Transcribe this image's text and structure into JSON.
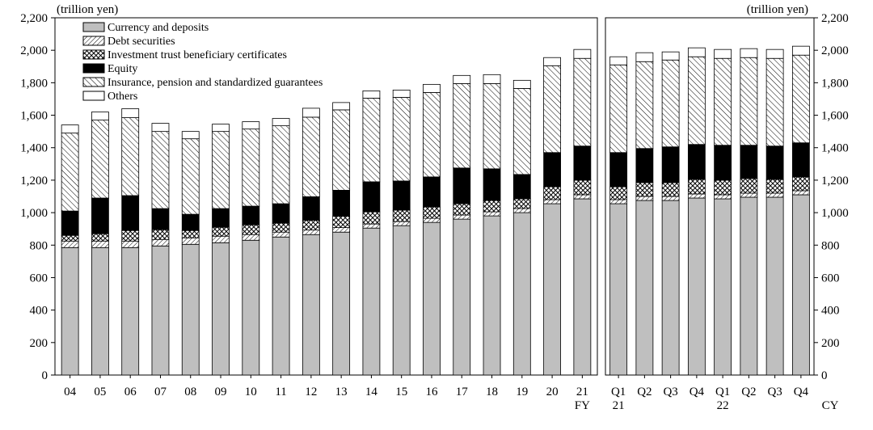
{
  "chart_data": {
    "type": "bar",
    "stacked": true,
    "unit_left": "(trillion yen)",
    "unit_right": "(trillion yen)",
    "ylim": [
      0,
      2200
    ],
    "yticks": [
      0,
      200,
      400,
      600,
      800,
      1000,
      1200,
      1400,
      1600,
      1800,
      2000,
      2200
    ],
    "ytick_labels": [
      "0",
      "200",
      "400",
      "600",
      "800",
      "1,000",
      "1,200",
      "1,400",
      "1,600",
      "1,800",
      "2,000",
      "2,200"
    ],
    "grid": false,
    "legend_position": "top-left",
    "series_order": [
      "Currency and deposits",
      "Debt securities",
      "Investment trust beneficiary certificates",
      "Equity",
      "Insurance, pension and standardized guarantees",
      "Others"
    ],
    "series_patterns": [
      "solid-gray",
      "hatch-fine",
      "crosshatch-dark",
      "solid-black",
      "hatch-diagonal",
      "solid-white"
    ],
    "colors": {
      "currency": "#bfbfbf",
      "equity": "#000000",
      "others": "#ffffff",
      "outline": "#000000"
    },
    "panels": [
      {
        "axis_label": "FY",
        "categories": [
          "04",
          "05",
          "06",
          "07",
          "08",
          "09",
          "10",
          "11",
          "12",
          "13",
          "14",
          "15",
          "16",
          "17",
          "18",
          "19",
          "20",
          "21"
        ],
        "category_sublabels": [
          "",
          "",
          "",
          "",
          "",
          "",
          "",
          "",
          "",
          "",
          "",
          "",
          "",
          "",
          "",
          "",
          "",
          ""
        ],
        "series": [
          {
            "name": "Currency and deposits",
            "values": [
              785,
              785,
              785,
              795,
              805,
              815,
              830,
              850,
              865,
              880,
              905,
              920,
              940,
              960,
              980,
              1000,
              1055,
              1085
            ]
          },
          {
            "name": "Debt securities",
            "values": [
              40,
              40,
              40,
              40,
              40,
              40,
              35,
              30,
              28,
              28,
              25,
              25,
              25,
              25,
              25,
              25,
              25,
              25
            ]
          },
          {
            "name": "Investment trust beneficiary certificates",
            "values": [
              35,
              45,
              65,
              60,
              45,
              55,
              60,
              55,
              60,
              70,
              75,
              70,
              70,
              70,
              70,
              60,
              80,
              90
            ]
          },
          {
            "name": "Equity",
            "values": [
              150,
              220,
              215,
              130,
              100,
              115,
              115,
              120,
              145,
              160,
              185,
              180,
              185,
              220,
              195,
              150,
              210,
              210
            ]
          },
          {
            "name": "Insurance, pension and standardized guarantees",
            "values": [
              480,
              480,
              480,
              475,
              465,
              475,
              475,
              480,
              490,
              495,
              515,
              515,
              520,
              520,
              525,
              530,
              535,
              540
            ]
          },
          {
            "name": "Others",
            "values": [
              50,
              50,
              55,
              50,
              45,
              45,
              45,
              45,
              55,
              45,
              45,
              45,
              50,
              50,
              55,
              50,
              50,
              55
            ]
          }
        ]
      },
      {
        "axis_label": "CY",
        "categories": [
          "Q1",
          "Q2",
          "Q3",
          "Q4",
          "Q1",
          "Q2",
          "Q3",
          "Q4"
        ],
        "category_sublabels": [
          "21",
          "",
          "",
          "",
          "22",
          "",
          "",
          ""
        ],
        "series": [
          {
            "name": "Currency and deposits",
            "values": [
              1055,
              1075,
              1075,
              1090,
              1085,
              1095,
              1095,
              1110
            ]
          },
          {
            "name": "Debt securities",
            "values": [
              25,
              25,
              25,
              25,
              25,
              25,
              25,
              25
            ]
          },
          {
            "name": "Investment trust beneficiary certificates",
            "values": [
              80,
              85,
              85,
              90,
              90,
              90,
              85,
              85
            ]
          },
          {
            "name": "Equity",
            "values": [
              210,
              210,
              220,
              215,
              215,
              205,
              205,
              210
            ]
          },
          {
            "name": "Insurance, pension and standardized guarantees",
            "values": [
              540,
              535,
              535,
              540,
              535,
              540,
              540,
              540
            ]
          },
          {
            "name": "Others",
            "values": [
              50,
              55,
              50,
              55,
              55,
              55,
              55,
              55
            ]
          }
        ]
      }
    ]
  }
}
